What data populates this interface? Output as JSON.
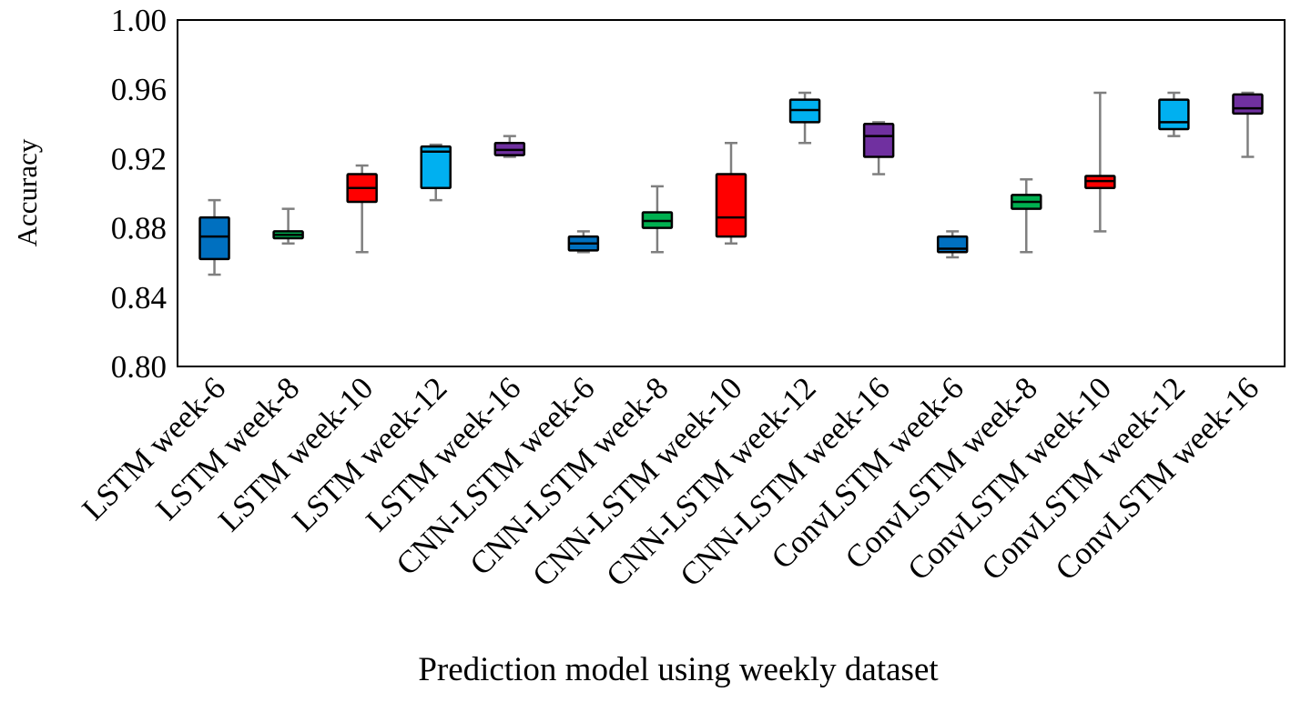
{
  "chart_data": {
    "type": "box",
    "title": "",
    "xlabel": "Prediction model using weekly dataset",
    "ylabel": "Accuracy",
    "ylim": [
      0.8,
      1.0
    ],
    "yticks": [
      "0.80",
      "0.84",
      "0.88",
      "0.92",
      "0.96",
      "1.00"
    ],
    "grid": false,
    "legend": "none",
    "categories": [
      {
        "label": "LSTM week-6",
        "min": 0.853,
        "q1": 0.862,
        "median": 0.875,
        "q3": 0.886,
        "max": 0.896,
        "color": "#0070C0"
      },
      {
        "label": "LSTM week-8",
        "min": 0.871,
        "q1": 0.874,
        "median": 0.876,
        "q3": 0.878,
        "max": 0.891,
        "color": "#00B050"
      },
      {
        "label": "LSTM week-10",
        "min": 0.866,
        "q1": 0.895,
        "median": 0.903,
        "q3": 0.911,
        "max": 0.916,
        "color": "#FF0000"
      },
      {
        "label": "LSTM week-12",
        "min": 0.896,
        "q1": 0.903,
        "median": 0.924,
        "q3": 0.927,
        "max": 0.928,
        "color": "#00B0F0"
      },
      {
        "label": "LSTM week-16",
        "min": 0.921,
        "q1": 0.922,
        "median": 0.925,
        "q3": 0.929,
        "max": 0.933,
        "color": "#7030A0"
      },
      {
        "label": "CNN-LSTM week-6",
        "min": 0.866,
        "q1": 0.867,
        "median": 0.871,
        "q3": 0.875,
        "max": 0.878,
        "color": "#0070C0"
      },
      {
        "label": "CNN-LSTM week-8",
        "min": 0.866,
        "q1": 0.88,
        "median": 0.884,
        "q3": 0.889,
        "max": 0.904,
        "color": "#00B050"
      },
      {
        "label": "CNN-LSTM week-10",
        "min": 0.871,
        "q1": 0.875,
        "median": 0.886,
        "q3": 0.911,
        "max": 0.929,
        "color": "#FF0000"
      },
      {
        "label": "CNN-LSTM week-12",
        "min": 0.929,
        "q1": 0.941,
        "median": 0.948,
        "q3": 0.954,
        "max": 0.958,
        "color": "#00B0F0"
      },
      {
        "label": "CNN-LSTM week-16",
        "min": 0.911,
        "q1": 0.921,
        "median": 0.933,
        "q3": 0.94,
        "max": 0.941,
        "color": "#7030A0"
      },
      {
        "label": "ConvLSTM week-6",
        "min": 0.863,
        "q1": 0.866,
        "median": 0.868,
        "q3": 0.875,
        "max": 0.878,
        "color": "#0070C0"
      },
      {
        "label": "ConvLSTM week-8",
        "min": 0.866,
        "q1": 0.891,
        "median": 0.895,
        "q3": 0.899,
        "max": 0.908,
        "color": "#00B050"
      },
      {
        "label": "ConvLSTM week-10",
        "min": 0.878,
        "q1": 0.903,
        "median": 0.907,
        "q3": 0.91,
        "max": 0.958,
        "color": "#FF0000"
      },
      {
        "label": "ConvLSTM week-12",
        "min": 0.933,
        "q1": 0.937,
        "median": 0.941,
        "q3": 0.954,
        "max": 0.958,
        "color": "#00B0F0"
      },
      {
        "label": "ConvLSTM week-16",
        "min": 0.921,
        "q1": 0.946,
        "median": 0.949,
        "q3": 0.957,
        "max": 0.958,
        "color": "#7030A0"
      }
    ]
  }
}
